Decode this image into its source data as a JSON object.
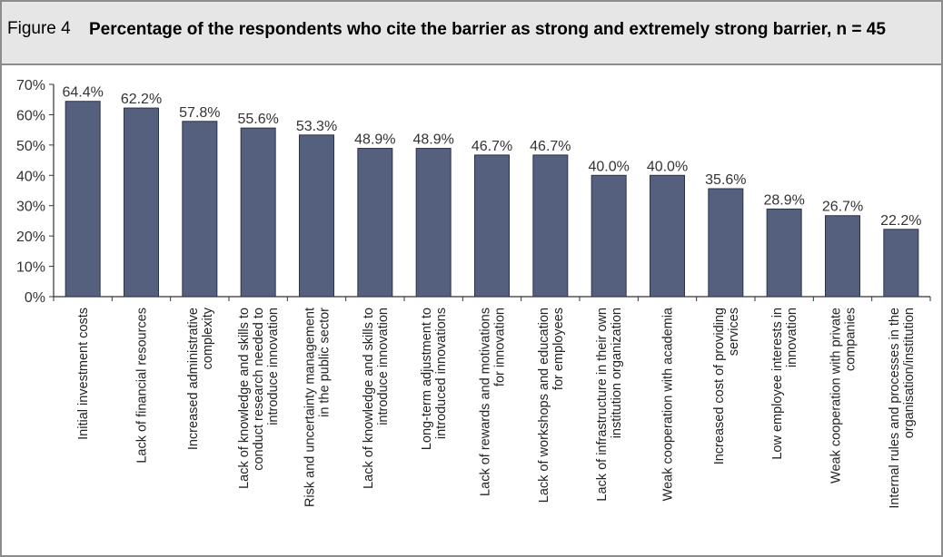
{
  "figure": {
    "label": "Figure 4",
    "title": "Percentage of the respondents who cite the barrier as strong and extremely strong barrier, n = 45"
  },
  "colors": {
    "bar": "#55607f",
    "bar_stroke": "#2c3349",
    "axis": "#333333",
    "caption_bg": "#e6e6e6"
  },
  "chart_data": {
    "type": "bar",
    "title": "Percentage of the respondents who cite the barrier as strong and extremely strong barrier, n = 45",
    "xlabel": "",
    "ylabel": "",
    "ylim": [
      0,
      70
    ],
    "yticks": [
      "0%",
      "10%",
      "20%",
      "30%",
      "40%",
      "50%",
      "60%",
      "70%"
    ],
    "grid": false,
    "categories": [
      [
        "Initial investment costs"
      ],
      [
        "Lack of financial resources"
      ],
      [
        "Increased administrative",
        "complexity"
      ],
      [
        "Lack of knowledge and skills to",
        "conduct research needed to",
        "introduce innovation"
      ],
      [
        "Risk and uncertainty management",
        "in the public sector"
      ],
      [
        "Lack of knowledge and skills to",
        "introduce innovation"
      ],
      [
        "Long-term adjustment to",
        "introduced innovations"
      ],
      [
        "Lack of rewards and motivations",
        "for innovation"
      ],
      [
        "Lack of workshops and education",
        "for employees"
      ],
      [
        "Lack of infrastructure in their own",
        "institution organization"
      ],
      [
        "Weak cooperation with academia"
      ],
      [
        "Increased cost of providing",
        "services"
      ],
      [
        "Low employee interests in",
        "innovation"
      ],
      [
        "Weak cooperation with private",
        "companies"
      ],
      [
        "Internal rules and processes in the",
        "organisation/institution"
      ]
    ],
    "values": [
      64.4,
      62.2,
      57.8,
      55.6,
      53.3,
      48.9,
      48.9,
      46.7,
      46.7,
      40.0,
      40.0,
      35.6,
      28.9,
      26.7,
      22.2
    ],
    "value_labels": [
      "64.4%",
      "62.2%",
      "57.8%",
      "55.6%",
      "53.3%",
      "48.9%",
      "48.9%",
      "46.7%",
      "46.7%",
      "40.0%",
      "40.0%",
      "35.6%",
      "28.9%",
      "26.7%",
      "22.2%"
    ]
  }
}
